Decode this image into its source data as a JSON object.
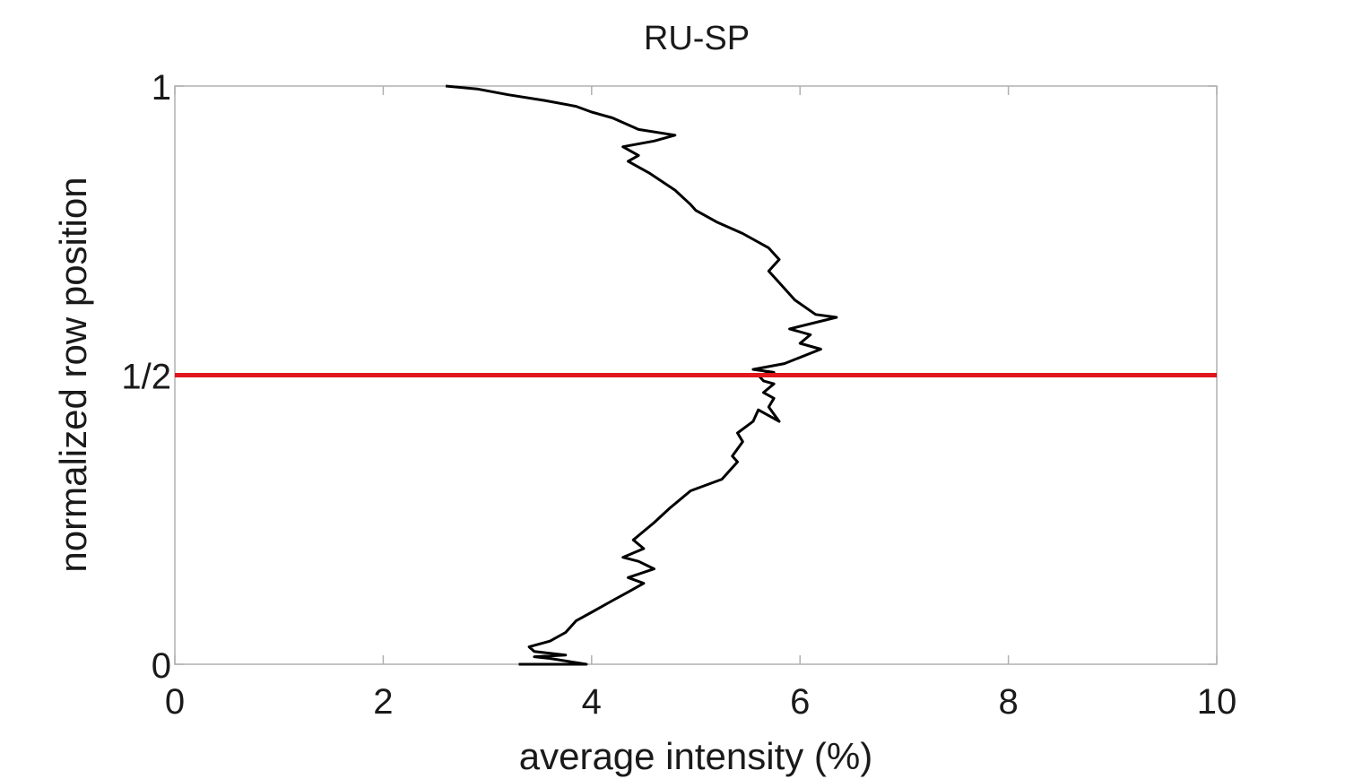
{
  "chart_data": {
    "type": "line",
    "title": "RU-SP",
    "xlabel": "average intensity (%)",
    "ylabel": "normalized row position",
    "xlim": [
      0,
      10
    ],
    "ylim": [
      0,
      1
    ],
    "x_ticks": [
      0,
      2,
      4,
      6,
      8,
      10
    ],
    "x_tick_labels": [
      "0",
      "2",
      "4",
      "6",
      "8",
      "10"
    ],
    "y_ticks": [
      0,
      0.5,
      1
    ],
    "y_tick_labels": [
      "0",
      "1/2",
      "1"
    ],
    "grid": false,
    "legend": "none",
    "series": [
      {
        "color": "#000000",
        "points": [
          [
            3.3,
            0.0
          ],
          [
            3.95,
            0.0
          ],
          [
            3.6,
            0.01
          ],
          [
            3.45,
            0.013
          ],
          [
            3.75,
            0.016
          ],
          [
            3.45,
            0.022
          ],
          [
            3.4,
            0.03
          ],
          [
            3.6,
            0.04
          ],
          [
            3.75,
            0.055
          ],
          [
            3.85,
            0.075
          ],
          [
            4.0,
            0.09
          ],
          [
            4.2,
            0.11
          ],
          [
            4.35,
            0.125
          ],
          [
            4.5,
            0.14
          ],
          [
            4.35,
            0.15
          ],
          [
            4.6,
            0.165
          ],
          [
            4.45,
            0.178
          ],
          [
            4.3,
            0.185
          ],
          [
            4.5,
            0.2
          ],
          [
            4.4,
            0.215
          ],
          [
            4.5,
            0.23
          ],
          [
            4.6,
            0.245
          ],
          [
            4.75,
            0.27
          ],
          [
            4.95,
            0.3
          ],
          [
            5.25,
            0.32
          ],
          [
            5.4,
            0.35
          ],
          [
            5.35,
            0.36
          ],
          [
            5.45,
            0.385
          ],
          [
            5.4,
            0.4
          ],
          [
            5.55,
            0.42
          ],
          [
            5.6,
            0.44
          ],
          [
            5.8,
            0.42
          ],
          [
            5.7,
            0.445
          ],
          [
            5.75,
            0.46
          ],
          [
            5.65,
            0.47
          ],
          [
            5.75,
            0.485
          ],
          [
            5.65,
            0.49
          ],
          [
            5.6,
            0.5
          ],
          [
            5.75,
            0.505
          ],
          [
            5.55,
            0.51
          ],
          [
            5.85,
            0.52
          ],
          [
            6.2,
            0.545
          ],
          [
            6.0,
            0.555
          ],
          [
            6.1,
            0.57
          ],
          [
            5.9,
            0.58
          ],
          [
            6.35,
            0.6
          ],
          [
            6.15,
            0.605
          ],
          [
            5.95,
            0.63
          ],
          [
            5.8,
            0.66
          ],
          [
            5.7,
            0.68
          ],
          [
            5.8,
            0.7
          ],
          [
            5.7,
            0.72
          ],
          [
            5.45,
            0.745
          ],
          [
            5.2,
            0.765
          ],
          [
            5.0,
            0.785
          ],
          [
            4.95,
            0.795
          ],
          [
            4.8,
            0.82
          ],
          [
            4.55,
            0.85
          ],
          [
            4.35,
            0.87
          ],
          [
            4.45,
            0.88
          ],
          [
            4.3,
            0.895
          ],
          [
            4.6,
            0.905
          ],
          [
            4.8,
            0.915
          ],
          [
            4.45,
            0.925
          ],
          [
            4.2,
            0.945
          ],
          [
            4.0,
            0.955
          ],
          [
            3.85,
            0.965
          ],
          [
            3.55,
            0.975
          ],
          [
            3.2,
            0.985
          ],
          [
            2.9,
            0.995
          ],
          [
            2.6,
            1.0
          ]
        ]
      },
      {
        "color": "#e0161b",
        "points": [
          [
            0,
            0.5
          ],
          [
            10,
            0.5
          ]
        ]
      }
    ]
  }
}
